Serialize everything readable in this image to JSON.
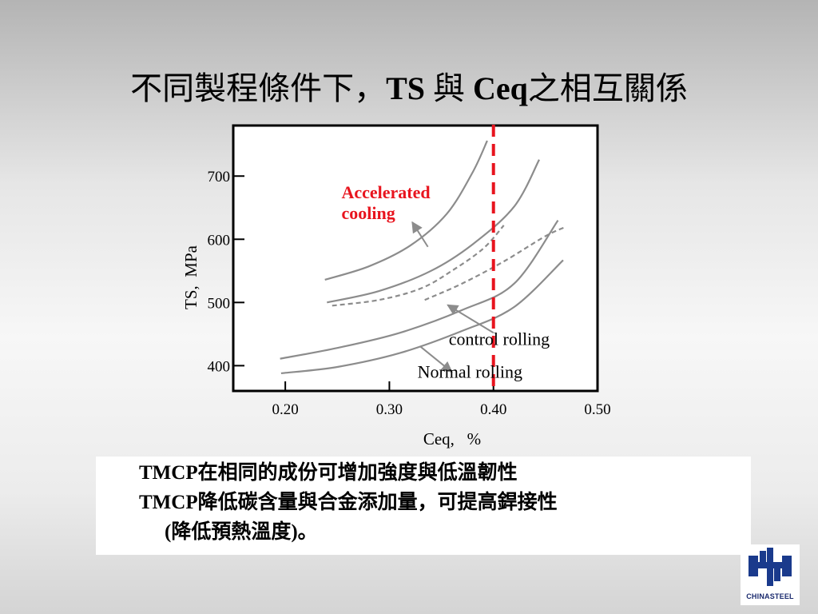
{
  "title": {
    "prefix": "不同製程條件下，",
    "ts": "TS",
    "mid": " 與 ",
    "ceq": "Ceq",
    "suffix": "之相互關係"
  },
  "chart_data": {
    "type": "line",
    "xlabel": "Ceq,   %",
    "ylabel": "TS,  MPa",
    "xlim": [
      0.15,
      0.5
    ],
    "ylim": [
      360,
      780
    ],
    "x_ticks": [
      {
        "value": 0.2,
        "label": "0.20"
      },
      {
        "value": 0.3,
        "label": "0.30"
      },
      {
        "value": 0.4,
        "label": "0.40"
      },
      {
        "value": 0.5,
        "label": "0.50"
      }
    ],
    "y_ticks": [
      {
        "value": 400,
        "label": "400"
      },
      {
        "value": 500,
        "label": "500"
      },
      {
        "value": 600,
        "label": "600"
      },
      {
        "value": 700,
        "label": "700"
      }
    ],
    "grid": false,
    "series": [
      {
        "color": "#8c8c8c",
        "dash": false,
        "points": [
          [
            0.238,
            536
          ],
          [
            0.28,
            557
          ],
          [
            0.32,
            590
          ],
          [
            0.355,
            640
          ],
          [
            0.38,
            706
          ],
          [
            0.394,
            756
          ]
        ]
      },
      {
        "color": "#8c8c8c",
        "dash": false,
        "points": [
          [
            0.24,
            500
          ],
          [
            0.29,
            518
          ],
          [
            0.34,
            550
          ],
          [
            0.38,
            592
          ],
          [
            0.42,
            652
          ],
          [
            0.444,
            726
          ]
        ]
      },
      {
        "color": "#8c8c8c",
        "dash": true,
        "points": [
          [
            0.245,
            495
          ],
          [
            0.29,
            504
          ],
          [
            0.33,
            522
          ],
          [
            0.36,
            550
          ],
          [
            0.39,
            585
          ],
          [
            0.41,
            622
          ]
        ]
      },
      {
        "color": "#8c8c8c",
        "dash": true,
        "points": [
          [
            0.334,
            504
          ],
          [
            0.37,
            530
          ],
          [
            0.41,
            565
          ],
          [
            0.45,
            605
          ],
          [
            0.47,
            620
          ]
        ]
      },
      {
        "color": "#8c8c8c",
        "dash": false,
        "points": [
          [
            0.195,
            411
          ],
          [
            0.25,
            428
          ],
          [
            0.31,
            452
          ],
          [
            0.37,
            488
          ],
          [
            0.42,
            530
          ],
          [
            0.462,
            630
          ]
        ]
      },
      {
        "color": "#8c8c8c",
        "dash": false,
        "points": [
          [
            0.196,
            388
          ],
          [
            0.25,
            398
          ],
          [
            0.31,
            420
          ],
          [
            0.37,
            455
          ],
          [
            0.42,
            493
          ],
          [
            0.467,
            567
          ]
        ]
      }
    ],
    "reference_line": {
      "x": 0.4,
      "color": "#e8141e",
      "dash": true
    },
    "annotations": [
      {
        "lines": [
          "Accelerated",
          "cooling"
        ],
        "color": "#e8141e",
        "bold": true,
        "x": 0.254,
        "y": 665,
        "arrow_from": [
          0.337,
          588
        ],
        "arrow_to": [
          0.322,
          627
        ]
      },
      {
        "lines": [
          "control rolling"
        ],
        "color": "#000000",
        "bold": false,
        "x": 0.357,
        "y": 433,
        "arrow_from": [
          0.4,
          452
        ],
        "arrow_to": [
          0.356,
          496
        ]
      },
      {
        "lines": [
          "Normal rolling"
        ],
        "color": "#000000",
        "bold": false,
        "x": 0.327,
        "y": 381,
        "arrow_from": [
          0.33,
          430
        ],
        "arrow_to": [
          0.36,
          390
        ]
      }
    ]
  },
  "notes": {
    "line1": "TMCP在相同的成份可增加強度與低溫韌性",
    "line2": "TMCP降低碳含量與合金添加量，可提高銲接性",
    "line3": "(降低預熱溫度)。"
  },
  "logo": {
    "text": "CHINASTEEL",
    "icon": "chinasteel-logo-icon",
    "color": "#1a3a8c"
  }
}
